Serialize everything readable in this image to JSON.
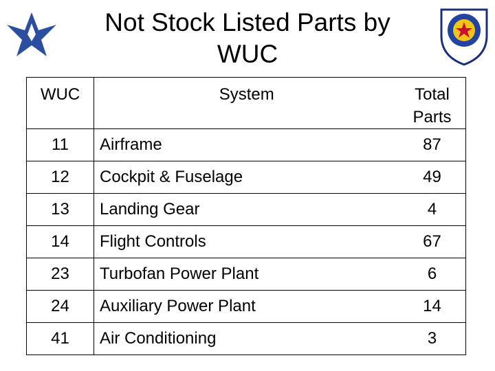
{
  "header": {
    "title": "Not Stock Listed Parts by WUC"
  },
  "table": {
    "columns": [
      "WUC",
      "System",
      "Total Parts"
    ],
    "rows": [
      [
        "11",
        "Airframe",
        87
      ],
      [
        "12",
        "Cockpit & Fuselage",
        49
      ],
      [
        "13",
        "Landing Gear",
        4
      ],
      [
        "14",
        "Flight Controls",
        67
      ],
      [
        "23",
        "Turbofan Power Plant",
        6
      ],
      [
        "24",
        "Auxiliary Power Plant",
        14
      ],
      [
        "41",
        "Air Conditioning",
        3
      ]
    ]
  }
}
